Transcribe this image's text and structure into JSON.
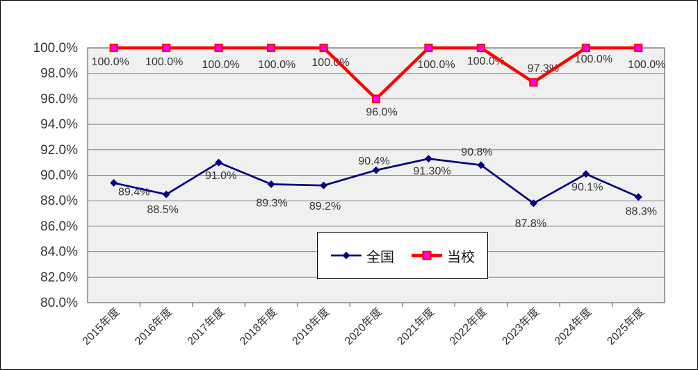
{
  "chart_data": {
    "type": "line",
    "title": "",
    "categories": [
      "2015年度",
      "2016年度",
      "2017年度",
      "2018年度",
      "2019年度",
      "2020年度",
      "2021年度",
      "2022年度",
      "2023年度",
      "2024年度",
      "2025年度"
    ],
    "series": [
      {
        "id": "national",
        "name": "全国",
        "values": [
          89.4,
          88.5,
          91.0,
          89.3,
          89.2,
          90.4,
          91.3,
          90.8,
          87.8,
          90.1,
          88.3
        ],
        "labels": [
          "89.4%",
          "88.5%",
          "91.0%",
          "89.3%",
          "89.2%",
          "90.4%",
          "91.30%",
          "90.8%",
          "87.8%",
          "90.1%",
          "88.3%"
        ],
        "color": "#000080",
        "marker": "diamond",
        "marker_fill": "#000080",
        "line_width": 2.7,
        "label_offsets": [
          [
            29,
            13
          ],
          [
            -5,
            22
          ],
          [
            3,
            19
          ],
          [
            1,
            27
          ],
          [
            2,
            30
          ],
          [
            -3,
            -13
          ],
          [
            5,
            18
          ],
          [
            -6,
            -19
          ],
          [
            -4,
            29
          ],
          [
            2,
            19
          ],
          [
            4,
            21
          ]
        ]
      },
      {
        "id": "school",
        "name": "当校",
        "values": [
          100.0,
          100.0,
          100.0,
          100.0,
          100.0,
          96.0,
          100.0,
          100.0,
          97.3,
          100.0,
          100.0
        ],
        "labels": [
          "100.0%",
          "100.0%",
          "100.0%",
          "100.0%",
          "100.0%",
          "96.0%",
          "100.0%",
          "100.0%",
          "97.3%",
          "100.0%",
          "100.0%"
        ],
        "color": "#FF0000",
        "marker": "square",
        "marker_fill": "#FF00FF",
        "line_width": 4.5,
        "label_offsets": [
          [
            -5,
            20
          ],
          [
            -3,
            20
          ],
          [
            3,
            24
          ],
          [
            8,
            24
          ],
          [
            10,
            21
          ],
          [
            8,
            19
          ],
          [
            11,
            24
          ],
          [
            7,
            19
          ],
          [
            14,
            -20
          ],
          [
            11,
            16
          ],
          [
            12,
            24
          ]
        ]
      }
    ],
    "ylim": [
      80,
      100
    ],
    "ytick_step": 2,
    "ytick_labels": [
      "100.0%",
      "98.0%",
      "96.0%",
      "94.0%",
      "92.0%",
      "90.0%",
      "88.0%",
      "86.0%",
      "84.0%",
      "82.0%",
      "80.0%"
    ],
    "grid": true,
    "plot_bg": "#F0F0F0",
    "gridline_color": "#808080",
    "plot_border_color": "#666666",
    "text_color": "#333333",
    "legend": {
      "position": "inside-bottom-center",
      "entries": [
        "全国",
        "当校"
      ]
    }
  }
}
